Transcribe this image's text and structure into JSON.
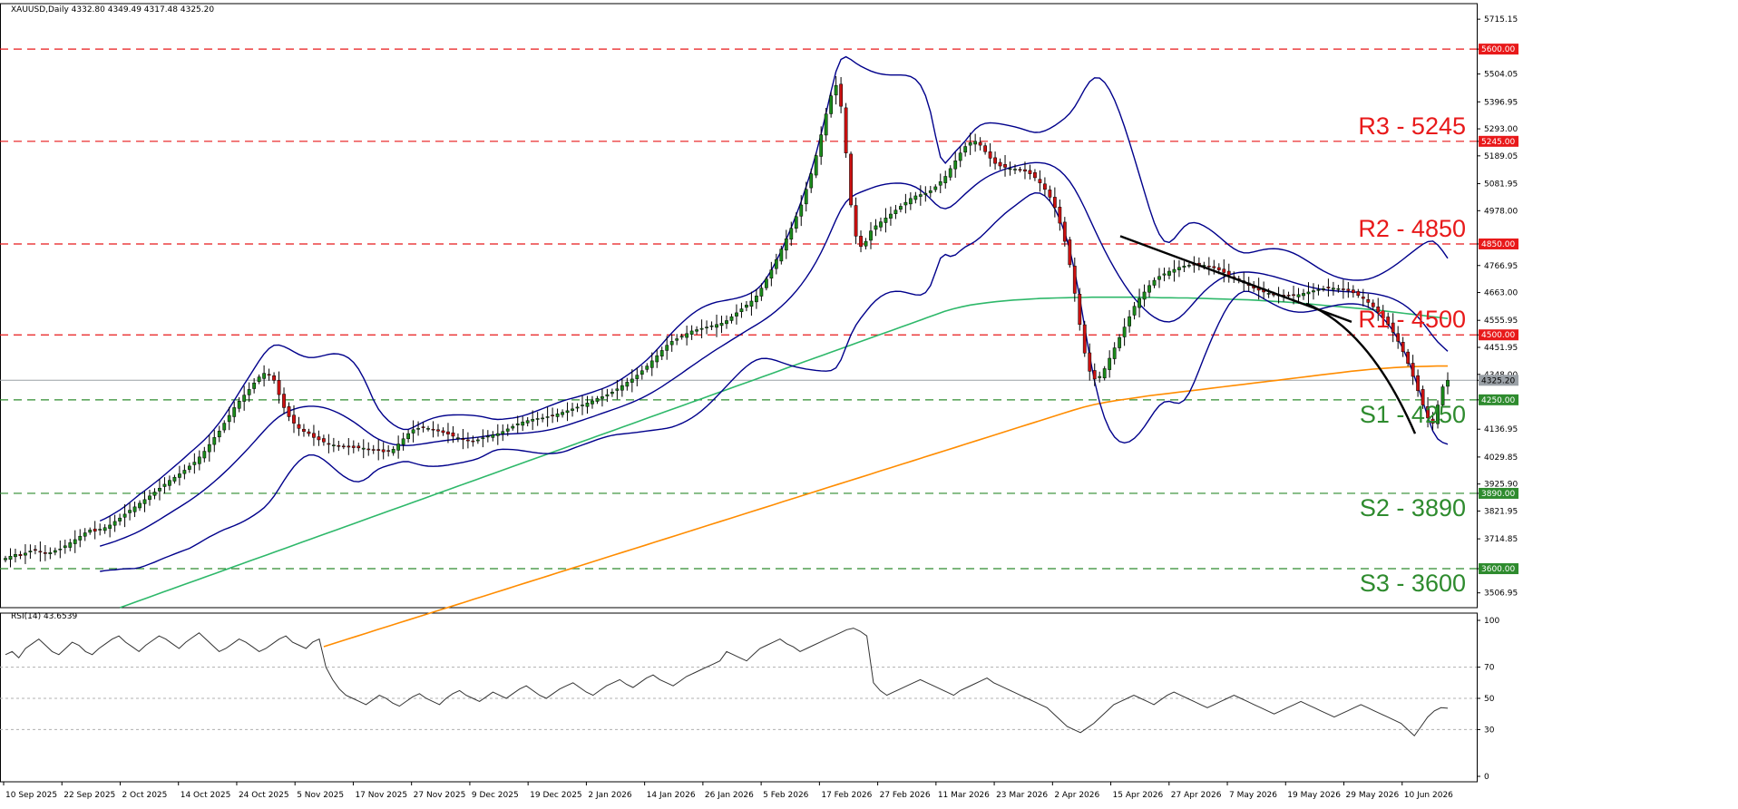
{
  "header": {
    "symbol_line": "XAUUSD,Daily  4332.80 4349.49 4317.48 4325.20",
    "rsi_line": "RSI(14) 43.6539"
  },
  "colors": {
    "up_candle": "#1a8a1a",
    "down_candle": "#cc1111",
    "wick": "#000000",
    "bollinger": "#00008b",
    "sma_100": "#2eb86a",
    "sma_200": "#ff8c00",
    "resistance": "#e8191a",
    "support": "#2e8b2e",
    "trendline": "#000000",
    "rsi_line": "#333333"
  },
  "chart_data": [
    {
      "type": "candlestick",
      "title": "XAUUSD,Daily",
      "ylim": [
        3450,
        5775
      ],
      "price_ticks": [
        "5715.15",
        "5600.00",
        "5504.05",
        "5396.95",
        "5293.00",
        "5245.00",
        "5189.05",
        "5081.95",
        "4978.00",
        "4850.00",
        "4766.95",
        "4663.00",
        "4555.95",
        "4500.00",
        "4451.95",
        "4348.00",
        "4325.20",
        "4250.00",
        "4136.95",
        "4029.85",
        "3925.90",
        "3890.00",
        "3821.95",
        "3714.85",
        "3600.00",
        "3506.95"
      ],
      "date_labels": [
        "10 Sep 2025",
        "22 Sep 2025",
        "2 Oct 2025",
        "14 Oct 2025",
        "24 Oct 2025",
        "5 Nov 2025",
        "17 Nov 2025",
        "27 Nov 2025",
        "9 Dec 2025",
        "19 Dec 2025",
        "2 Jan 2026",
        "14 Jan 2026",
        "26 Jan 2026",
        "5 Feb 2026",
        "17 Feb 2026",
        "27 Feb 2026",
        "11 Mar 2026",
        "23 Mar 2026",
        "2 Apr 2026",
        "15 Apr 2026",
        "27 Apr 2026",
        "7 May 2026",
        "19 May 2026",
        "29 May 2026",
        "10 Jun 2026"
      ],
      "current_price": 4325.2,
      "last_candle": {
        "open": 4332.8,
        "high": 4349.49,
        "low": 4317.48,
        "close": 4325.2
      },
      "levels": [
        {
          "name": "R3",
          "label": "R3 - 5245",
          "value": 5245,
          "kind": "resistance",
          "tag": "5245.00"
        },
        {
          "name": "R2",
          "label": "R2 - 4850",
          "value": 4850,
          "kind": "resistance",
          "tag": "4850.00"
        },
        {
          "name": "R1",
          "label": "R1 - 4500",
          "value": 4500,
          "kind": "resistance",
          "tag": "4500.00"
        },
        {
          "name": "S1",
          "label": "S1 - 4250",
          "value": 4250,
          "kind": "support",
          "tag": "4250.00"
        },
        {
          "name": "S2",
          "label": "S2 - 3890",
          "value": 3890,
          "kind": "support",
          "tag": "3890.00"
        },
        {
          "name": "S3",
          "label": "S3 - 3600",
          "value": 3600,
          "kind": "support",
          "tag": "3600.00"
        },
        {
          "name": "top",
          "label": "",
          "value": 5600,
          "kind": "resistance",
          "tag": "5600.00"
        }
      ],
      "close_series": [
        3640,
        3648,
        3655,
        3650,
        3660,
        3668,
        3672,
        3665,
        3658,
        3662,
        3670,
        3676,
        3688,
        3700,
        3712,
        3725,
        3738,
        3749,
        3744,
        3752,
        3758,
        3768,
        3782,
        3795,
        3810,
        3825,
        3838,
        3852,
        3866,
        3880,
        3895,
        3910,
        3925,
        3940,
        3952,
        3965,
        3979,
        3995,
        4010,
        4030,
        4052,
        4078,
        4105,
        4130,
        4160,
        4190,
        4220,
        4245,
        4268,
        4290,
        4315,
        4338,
        4352,
        4345,
        4325,
        4270,
        4220,
        4185,
        4160,
        4140,
        4128,
        4120,
        4105,
        4096,
        4088,
        4080,
        4076,
        4072,
        4070,
        4068,
        4066,
        4065,
        4064,
        4060,
        4058,
        4055,
        4050,
        4052,
        4060,
        4080,
        4100,
        4120,
        4135,
        4140,
        4143,
        4140,
        4136,
        4130,
        4124,
        4118,
        4110,
        4104,
        4098,
        4092,
        4090,
        4096,
        4104,
        4110,
        4115,
        4120,
        4128,
        4138,
        4148,
        4158,
        4165,
        4170,
        4175,
        4178,
        4180,
        4185,
        4190,
        4196,
        4202,
        4208,
        4215,
        4222,
        4230,
        4238,
        4246,
        4255,
        4262,
        4270,
        4280,
        4292,
        4305,
        4318,
        4330,
        4345,
        4362,
        4380,
        4400,
        4420,
        4440,
        4460,
        4475,
        4485,
        4495,
        4505,
        4515,
        4520,
        4525,
        4530,
        4535,
        4540,
        4545,
        4555,
        4570,
        4585,
        4600,
        4615,
        4630,
        4650,
        4680,
        4715,
        4750,
        4790,
        4830,
        4870,
        4910,
        4955,
        5000,
        5060,
        5120,
        5190,
        5270,
        5350,
        5420,
        5460,
        5380,
        5200,
        5000,
        4880,
        4840,
        4860,
        4900,
        4920,
        4935,
        4950,
        4965,
        4980,
        4995,
        5010,
        5025,
        5035,
        5040,
        5045,
        5055,
        5070,
        5090,
        5110,
        5140,
        5170,
        5200,
        5225,
        5240,
        5245,
        5230,
        5205,
        5180,
        5160,
        5150,
        5145,
        5140,
        5138,
        5135,
        5130,
        5120,
        5105,
        5085,
        5060,
        5030,
        4990,
        4930,
        4860,
        4770,
        4660,
        4540,
        4430,
        4360,
        4330,
        4340,
        4370,
        4410,
        4450,
        4490,
        4530,
        4570,
        4610,
        4640,
        4665,
        4690,
        4710,
        4725,
        4735,
        4745,
        4752,
        4760,
        4765,
        4768,
        4770,
        4770,
        4768,
        4764,
        4758,
        4750,
        4740,
        4730,
        4720,
        4710,
        4700,
        4690,
        4680,
        4672,
        4665,
        4660,
        4655,
        4652,
        4650,
        4650,
        4652,
        4655,
        4660,
        4665,
        4670,
        4674,
        4678,
        4680,
        4680,
        4678,
        4675,
        4670,
        4662,
        4652,
        4640,
        4625,
        4608,
        4588,
        4565,
        4540,
        4510,
        4475,
        4435,
        4390,
        4340,
        4285,
        4230,
        4180,
        4160,
        4230,
        4300,
        4325
      ],
      "sma100_series": [
        3450,
        3462,
        3474,
        3486,
        3498,
        3510,
        3522,
        3534,
        3546,
        3558,
        3570,
        3582,
        3594,
        3606,
        3618,
        3630,
        3642,
        3654,
        3666,
        3678,
        3690,
        3702,
        3714,
        3726,
        3738,
        3750,
        3762,
        3774,
        3786,
        3798,
        3810,
        3822,
        3834,
        3846,
        3858,
        3870,
        3882,
        3894,
        3906,
        3918,
        3930,
        3942,
        3954,
        3966,
        3978,
        3990,
        4002,
        4014,
        4026,
        4038,
        4050,
        4062,
        4074,
        4086,
        4098,
        4110,
        4122,
        4134,
        4146,
        4158,
        4170,
        4182,
        4194,
        4206,
        4218,
        4230,
        4242,
        4254,
        4266,
        4278,
        4290,
        4302,
        4314,
        4326,
        4338,
        4350,
        4362,
        4374,
        4386,
        4398,
        4410,
        4422,
        4434,
        4446,
        4458,
        4470,
        4482,
        4494,
        4506,
        4518,
        4530,
        4542,
        4554,
        4566,
        4578,
        4590,
        4600,
        4608,
        4615,
        4620,
        4624,
        4628,
        4631,
        4634,
        4636,
        4638,
        4640,
        4641,
        4642,
        4643,
        4644,
        4644,
        4645,
        4645,
        4645,
        4645,
        4645,
        4645,
        4644,
        4644,
        4643,
        4643,
        4642,
        4642,
        4641,
        4640,
        4639,
        4638,
        4637,
        4636,
        4635,
        4633,
        4631,
        4629,
        4627,
        4625,
        4622,
        4619,
        4616,
        4613,
        4610,
        4607,
        4604,
        4601,
        4598,
        4595,
        4591,
        4587,
        4583,
        4579,
        4575,
        4571,
        4567,
        4563
      ],
      "sma200_series": [
        3300,
        3313,
        3326,
        3339,
        3352,
        3365,
        3378,
        3391,
        3404,
        3417,
        3430,
        3443,
        3456,
        3469,
        3482,
        3495,
        3508,
        3521,
        3534,
        3547,
        3560,
        3573,
        3586,
        3599,
        3612,
        3625,
        3638,
        3651,
        3664,
        3677,
        3690,
        3703,
        3716,
        3729,
        3742,
        3755,
        3768,
        3781,
        3794,
        3807,
        3820,
        3833,
        3846,
        3859,
        3872,
        3885,
        3898,
        3911,
        3924,
        3937,
        3950,
        3963,
        3976,
        3989,
        4002,
        4015,
        4028,
        4041,
        4054,
        4067,
        4080,
        4093,
        4106,
        4119,
        4132,
        4145,
        4158,
        4171,
        4184,
        4197,
        4210,
        4222,
        4232,
        4240,
        4247,
        4253,
        4259,
        4265,
        4270,
        4275,
        4280,
        4285,
        4290,
        4295,
        4300,
        4305,
        4310,
        4315,
        4320,
        4325,
        4330,
        4335,
        4340,
        4345,
        4350,
        4355,
        4360,
        4364,
        4368,
        4371,
        4374,
        4376,
        4378,
        4379,
        4380,
        4380
      ]
    },
    {
      "type": "line",
      "title": "RSI(14) 43.6539",
      "ylim": [
        0,
        100
      ],
      "levels": [
        30,
        50,
        70
      ],
      "tick_labels": [
        "100",
        "70",
        "50",
        "30",
        "0"
      ],
      "values": [
        78,
        80,
        76,
        82,
        85,
        88,
        84,
        80,
        78,
        82,
        86,
        84,
        80,
        78,
        82,
        85,
        88,
        90,
        86,
        83,
        80,
        84,
        87,
        90,
        88,
        85,
        82,
        86,
        89,
        92,
        88,
        84,
        80,
        82,
        85,
        88,
        86,
        83,
        80,
        82,
        85,
        88,
        90,
        86,
        84,
        82,
        86,
        88,
        70,
        62,
        56,
        52,
        50,
        48,
        46,
        49,
        52,
        50,
        47,
        45,
        48,
        51,
        53,
        50,
        48,
        46,
        50,
        53,
        55,
        52,
        50,
        48,
        51,
        54,
        52,
        50,
        53,
        56,
        58,
        55,
        52,
        50,
        53,
        56,
        58,
        60,
        57,
        54,
        52,
        55,
        58,
        60,
        62,
        59,
        57,
        60,
        63,
        65,
        62,
        60,
        58,
        61,
        64,
        66,
        68,
        70,
        72,
        74,
        80,
        78,
        76,
        74,
        78,
        82,
        84,
        86,
        88,
        85,
        83,
        80,
        82,
        84,
        86,
        88,
        90,
        92,
        94,
        95,
        93,
        90,
        60,
        55,
        52,
        54,
        56,
        58,
        60,
        62,
        60,
        58,
        56,
        54,
        52,
        55,
        57,
        59,
        61,
        63,
        60,
        58,
        56,
        54,
        52,
        50,
        48,
        46,
        44,
        40,
        36,
        32,
        30,
        28,
        31,
        34,
        38,
        42,
        46,
        48,
        50,
        52,
        50,
        48,
        46,
        49,
        52,
        54,
        52,
        50,
        48,
        46,
        44,
        46,
        48,
        50,
        52,
        50,
        48,
        46,
        44,
        42,
        40,
        42,
        44,
        46,
        48,
        46,
        44,
        42,
        40,
        38,
        40,
        42,
        44,
        46,
        44,
        42,
        40,
        38,
        36,
        34,
        30,
        26,
        32,
        38,
        42,
        44,
        43.65
      ]
    }
  ]
}
